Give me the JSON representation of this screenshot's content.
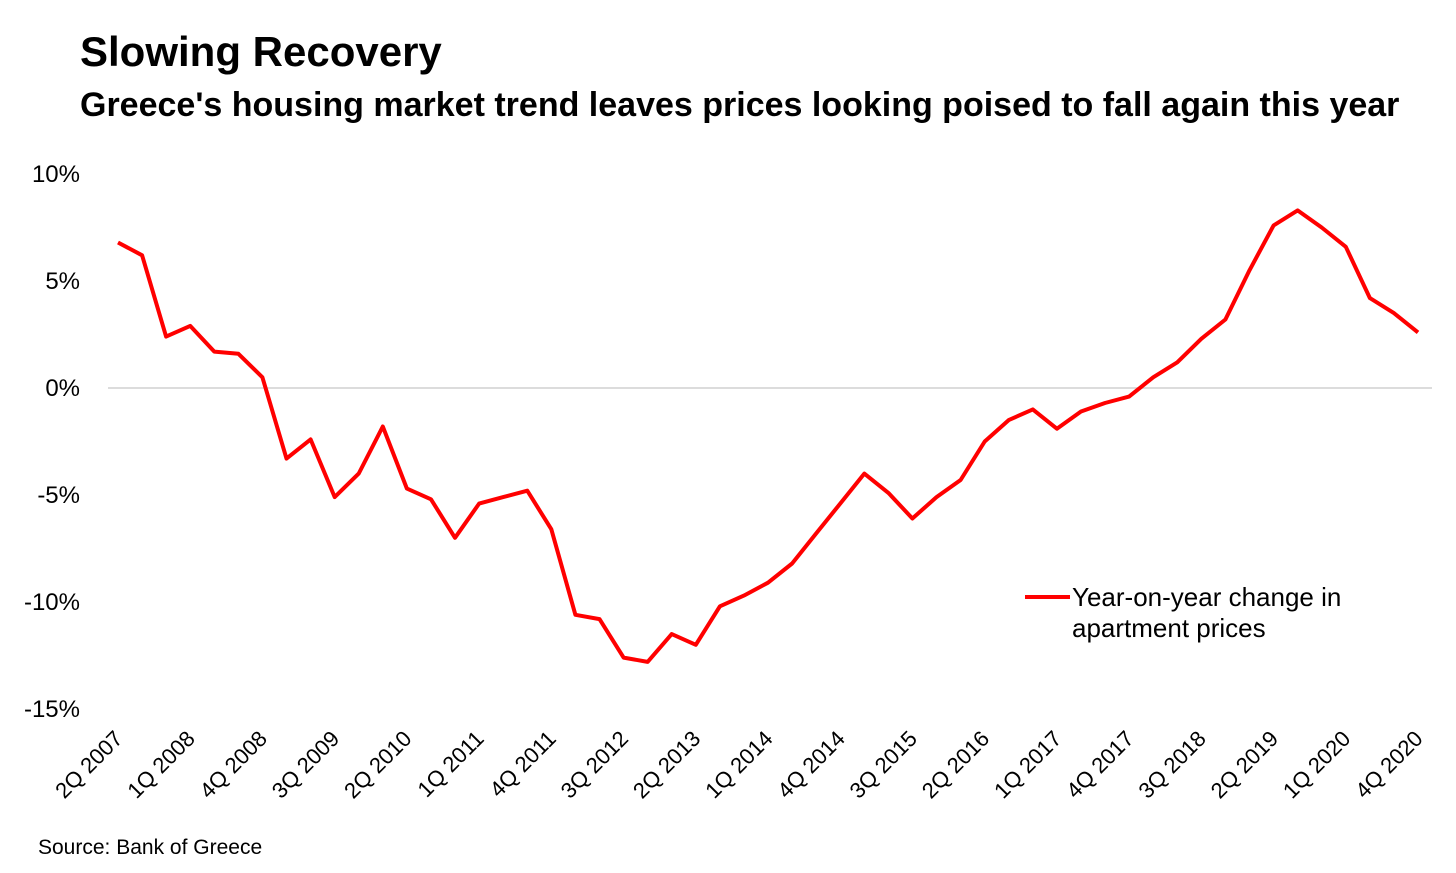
{
  "chart_data": {
    "type": "line",
    "title": "Slowing Recovery",
    "subtitle": "Greece's housing market trend leaves prices looking poised to fall again this year",
    "source": "Source: Bank of Greece",
    "ylim": [
      -15,
      10
    ],
    "y_ticks": [
      {
        "value": 10,
        "label": "10%"
      },
      {
        "value": 5,
        "label": "5%"
      },
      {
        "value": 0,
        "label": "0%"
      },
      {
        "value": -5,
        "label": "-5%"
      },
      {
        "value": -10,
        "label": "-10%"
      },
      {
        "value": -15,
        "label": "-15%"
      }
    ],
    "x_tick_labels": [
      "2Q 2007",
      "1Q 2008",
      "4Q 2008",
      "3Q 2009",
      "2Q 2010",
      "1Q 2011",
      "4Q 2011",
      "3Q 2012",
      "2Q 2013",
      "1Q 2014",
      "4Q 2014",
      "3Q 2015",
      "2Q 2016",
      "1Q 2017",
      "4Q 2017",
      "3Q 2018",
      "2Q 2019",
      "1Q 2020",
      "4Q 2020"
    ],
    "x_tick_every": 3,
    "grid": false,
    "zero_line": true,
    "legend_position": "right",
    "categories": [
      "2Q 2007",
      "3Q 2007",
      "4Q 2007",
      "1Q 2008",
      "2Q 2008",
      "3Q 2008",
      "4Q 2008",
      "1Q 2009",
      "2Q 2009",
      "3Q 2009",
      "4Q 2009",
      "1Q 2010",
      "2Q 2010",
      "3Q 2010",
      "4Q 2010",
      "1Q 2011",
      "2Q 2011",
      "3Q 2011",
      "4Q 2011",
      "1Q 2012",
      "2Q 2012",
      "3Q 2012",
      "4Q 2012",
      "1Q 2013",
      "2Q 2013",
      "3Q 2013",
      "4Q 2013",
      "1Q 2014",
      "2Q 2014",
      "3Q 2014",
      "4Q 2014",
      "1Q 2015",
      "2Q 2015",
      "3Q 2015",
      "4Q 2015",
      "1Q 2016",
      "2Q 2016",
      "3Q 2016",
      "4Q 2016",
      "1Q 2017",
      "2Q 2017",
      "3Q 2017",
      "4Q 2017",
      "1Q 2018",
      "2Q 2018",
      "3Q 2018",
      "4Q 2018",
      "1Q 2019",
      "2Q 2019",
      "3Q 2019",
      "4Q 2019",
      "1Q 2020",
      "2Q 2020",
      "3Q 2020",
      "4Q 2020"
    ],
    "series": [
      {
        "name": "Year-on-year change in apartment prices",
        "name_lines": [
          "Year-on-year change in",
          "apartment prices"
        ],
        "color": "#ff0000",
        "values": [
          6.8,
          6.2,
          2.4,
          2.9,
          1.7,
          1.6,
          0.5,
          -3.3,
          -2.4,
          -5.1,
          -4.0,
          -1.8,
          -4.7,
          -5.2,
          -7.0,
          -5.4,
          -5.1,
          -4.8,
          -6.6,
          -10.6,
          -10.8,
          -12.6,
          -12.8,
          -11.5,
          -12.0,
          -10.2,
          -9.7,
          -9.1,
          -8.2,
          -6.8,
          -5.4,
          -4.0,
          -4.9,
          -6.1,
          -5.1,
          -4.3,
          -2.5,
          -1.5,
          -1.0,
          -1.9,
          -1.1,
          -0.7,
          -0.4,
          0.5,
          1.2,
          2.3,
          3.2,
          5.5,
          7.6,
          8.3,
          7.5,
          6.6,
          4.2,
          3.5,
          2.6
        ]
      }
    ]
  }
}
